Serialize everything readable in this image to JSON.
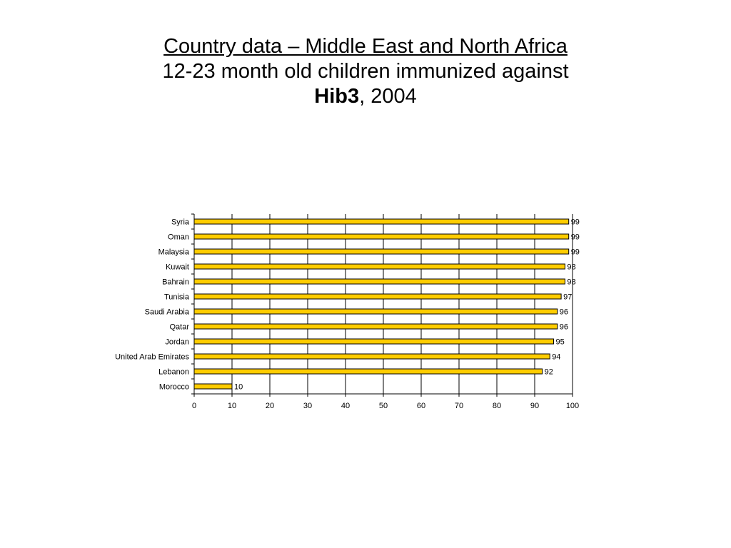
{
  "slide": {
    "title_line1": "Country data – Middle East and North Africa",
    "title_line2": "12-23 month old children immunized against",
    "title_bold": "Hib3",
    "title_rest": ", 2004"
  },
  "chart_data": {
    "type": "bar",
    "orientation": "horizontal",
    "categories": [
      "Syria",
      "Oman",
      "Malaysia",
      "Kuwait",
      "Bahrain",
      "Tunisia",
      "Saudi Arabia",
      "Qatar",
      "Jordan",
      "United Arab Emirates",
      "Lebanon",
      "Morocco"
    ],
    "values": [
      99,
      99,
      99,
      98,
      98,
      97,
      96,
      96,
      95,
      94,
      92,
      10
    ],
    "xlim": [
      0,
      100
    ],
    "xticks": [
      0,
      10,
      20,
      30,
      40,
      50,
      60,
      70,
      80,
      90,
      100
    ],
    "grid": "vertical",
    "bar_color": "#FFCC00",
    "bar_edge_color": "#000000",
    "data_labels": true
  }
}
